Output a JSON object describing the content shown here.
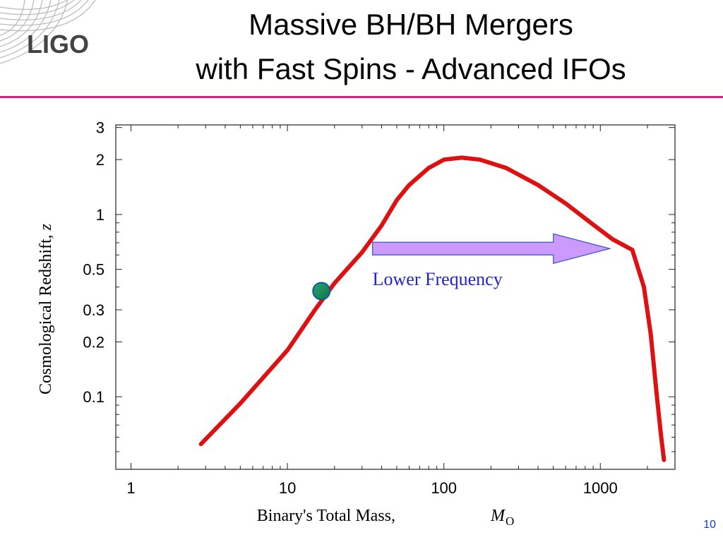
{
  "slide": {
    "title_line1": "Massive BH/BH Mergers",
    "title_line2": "with Fast Spins - Advanced IFOs",
    "logo_text": "LIGO",
    "page_number": "10",
    "accent_color": "#d4237e"
  },
  "chart_data": {
    "type": "line",
    "xlabel": "Binary's Total Mass,",
    "xlabel_symbol": "M",
    "xlabel_subscript": "O",
    "ylabel": "Cosmological Redshift,",
    "ylabel_symbol": "z",
    "xscale": "log",
    "yscale": "log",
    "xlim": [
      0.8,
      3000
    ],
    "ylim": [
      0.04,
      3.1
    ],
    "x_ticks": [
      1,
      10,
      100,
      1000
    ],
    "x_tick_labels": [
      "1",
      "10",
      "100",
      "1000"
    ],
    "y_ticks": [
      0.1,
      0.2,
      0.3,
      0.5,
      1,
      2,
      3
    ],
    "y_tick_labels": [
      "0.1",
      "0.2",
      "0.3",
      "0.5",
      "1",
      "2",
      "3"
    ],
    "grid": false,
    "series": [
      {
        "color": "#dd1111",
        "x": [
          2.8,
          5,
          10,
          15,
          20,
          30,
          40,
          50,
          60,
          80,
          100,
          130,
          170,
          250,
          400,
          600,
          900,
          1200,
          1600,
          1900,
          2100,
          2300,
          2450,
          2550
        ],
        "y": [
          0.055,
          0.092,
          0.18,
          0.3,
          0.42,
          0.62,
          0.87,
          1.2,
          1.45,
          1.8,
          2.0,
          2.05,
          2.0,
          1.8,
          1.45,
          1.15,
          0.88,
          0.73,
          0.64,
          0.4,
          0.22,
          0.1,
          0.06,
          0.045
        ]
      }
    ],
    "marker": {
      "x": 16.5,
      "y": 0.38,
      "color": "#1a8a5a"
    },
    "annotation": {
      "text": "Lower Frequency",
      "color": "#2222cc",
      "arrow_color": "#cc99ff",
      "arrow_from_x": 35,
      "arrow_to_x": 1150,
      "arrow_y": 0.65
    }
  }
}
